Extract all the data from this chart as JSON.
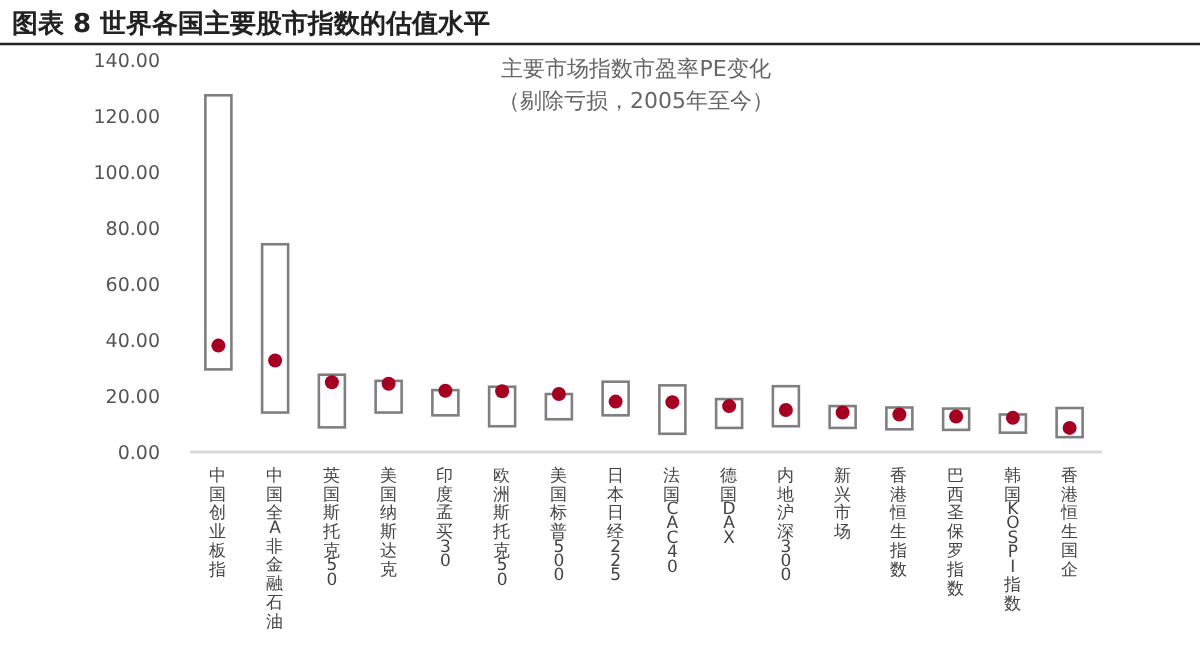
{
  "chart_data": {
    "type": "bar",
    "title": "图表 8 世界各国主要股市指数的估值水平",
    "subtitle": "主要市场指数市盈率PE变化",
    "annotations": [
      "（剔除亏损，2005年至今）"
    ],
    "categories": [
      "中国创业板指",
      "中国全A非金融石油",
      "英国斯托克50",
      "美国纳斯达克",
      "印度孟买30",
      "欧洲斯托克50",
      "美国标普500",
      "日本日经225",
      "法国CAC40",
      "德国DAX",
      "内地沪深300",
      "新兴市场",
      "香港恒生指数",
      "巴西圣保罗指数",
      "韩国KOSPI指数",
      "香港恒生国企"
    ],
    "series": [
      {
        "type": "bar",
        "color": "#7f7f7f",
        "base": [
          29.5,
          14.1,
          8.8,
          14.1,
          13.1,
          9.2,
          11.7,
          13.1,
          6.5,
          8.6,
          9.2,
          8.6,
          8.1,
          7.9,
          6.9,
          5.3
        ],
        "values": [
          97.9,
          60.1,
          18.8,
          11.3,
          9,
          14.1,
          9,
          12,
          17.3,
          10.3,
          14.3,
          7.8,
          7.8,
          7.6,
          6.5,
          10.4
        ]
      },
      {
        "type": "scatter",
        "color": "#a50021",
        "marker": "circle",
        "values": [
          38,
          32.7,
          24.9,
          24.4,
          21.9,
          21.7,
          20.7,
          18,
          17.8,
          16.4,
          15,
          14.1,
          13.4,
          12.7,
          12.2,
          8.6
        ]
      }
    ],
    "ylim": [
      0,
      140
    ],
    "yticks": [
      {
        "value": 0,
        "label": "0.00"
      },
      {
        "value": 20,
        "label": "20.00"
      },
      {
        "value": 40,
        "label": "40.00"
      },
      {
        "value": 60,
        "label": "60.00"
      },
      {
        "value": 80,
        "label": "80.00"
      },
      {
        "value": 100,
        "label": "100.00"
      },
      {
        "value": 120,
        "label": "120.00"
      },
      {
        "value": 140,
        "label": "140.00"
      }
    ]
  }
}
